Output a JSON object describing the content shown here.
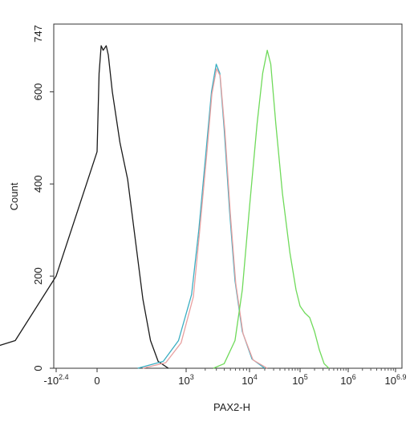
{
  "chart_data": {
    "type": "histogram-overlay",
    "xlabel": "PAX2-H",
    "ylabel": "Count",
    "x_scale": "biexponential (log decades)",
    "y_range": [
      0,
      747
    ],
    "y_ticks": [
      "0",
      "200",
      "400",
      "600"
    ],
    "y_max_label": "747",
    "x_ticks": [
      {
        "base": "-10",
        "exp": "2.4"
      },
      {
        "base": "0",
        "exp": ""
      },
      {
        "base": "10",
        "exp": "3"
      },
      {
        "base": "10",
        "exp": "4"
      },
      {
        "base": "10",
        "exp": "5"
      },
      {
        "base": "10",
        "exp": "6"
      },
      {
        "base": "10",
        "exp": "6.9"
      }
    ],
    "grid": false,
    "legend": "none",
    "series": [
      {
        "color": "#1a1a1a",
        "points": [
          [
            -0.35,
            0
          ],
          [
            -0.2,
            5
          ],
          [
            -0.1,
            60
          ],
          [
            -0.05,
            200
          ],
          [
            0,
            470
          ],
          [
            0.04,
            640
          ],
          [
            0.08,
            700
          ],
          [
            0.12,
            690
          ],
          [
            0.18,
            700
          ],
          [
            0.22,
            680
          ],
          [
            0.3,
            600
          ],
          [
            0.45,
            490
          ],
          [
            0.6,
            410
          ],
          [
            0.75,
            280
          ],
          [
            0.9,
            150
          ],
          [
            1.05,
            60
          ],
          [
            1.2,
            15
          ],
          [
            1.4,
            0
          ]
        ]
      },
      {
        "color": "#3aaec2",
        "points": [
          [
            0.8,
            0
          ],
          [
            1.3,
            15
          ],
          [
            1.6,
            60
          ],
          [
            1.9,
            160
          ],
          [
            2.1,
            300
          ],
          [
            2.3,
            470
          ],
          [
            2.45,
            600
          ],
          [
            2.58,
            660
          ],
          [
            2.68,
            640
          ],
          [
            2.8,
            520
          ],
          [
            2.95,
            340
          ],
          [
            3.1,
            190
          ],
          [
            3.3,
            80
          ],
          [
            3.55,
            20
          ],
          [
            3.8,
            0
          ]
        ]
      },
      {
        "color": "#e8a0a0",
        "points": [
          [
            0.9,
            0
          ],
          [
            1.35,
            12
          ],
          [
            1.65,
            55
          ],
          [
            1.95,
            155
          ],
          [
            2.12,
            295
          ],
          [
            2.32,
            465
          ],
          [
            2.46,
            595
          ],
          [
            2.59,
            650
          ],
          [
            2.69,
            635
          ],
          [
            2.82,
            515
          ],
          [
            2.97,
            335
          ],
          [
            3.12,
            185
          ],
          [
            3.32,
            75
          ],
          [
            3.57,
            18
          ],
          [
            3.85,
            0
          ]
        ]
      },
      {
        "color": "#6fda5a",
        "points": [
          [
            2.5,
            0
          ],
          [
            2.8,
            10
          ],
          [
            3.1,
            60
          ],
          [
            3.3,
            170
          ],
          [
            3.5,
            350
          ],
          [
            3.65,
            530
          ],
          [
            3.76,
            640
          ],
          [
            3.85,
            690
          ],
          [
            3.92,
            660
          ],
          [
            4.02,
            530
          ],
          [
            4.15,
            380
          ],
          [
            4.3,
            250
          ],
          [
            4.42,
            170
          ],
          [
            4.5,
            135
          ],
          [
            4.6,
            120
          ],
          [
            4.7,
            110
          ],
          [
            4.8,
            80
          ],
          [
            4.9,
            40
          ],
          [
            5.0,
            10
          ],
          [
            5.1,
            0
          ]
        ]
      }
    ]
  }
}
